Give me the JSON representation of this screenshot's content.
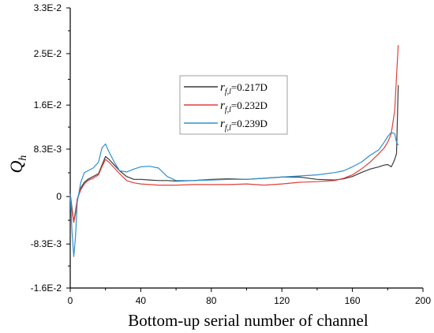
{
  "chart_data": {
    "type": "line",
    "title": "",
    "xlabel": "Bottom-up serial number of channel",
    "ylabel_main": "Q",
    "ylabel_sub": "h",
    "xlim": [
      0,
      200
    ],
    "ylim": [
      -0.016,
      0.033
    ],
    "x_ticks": [
      {
        "value": 0,
        "label": "0"
      },
      {
        "value": 40,
        "label": "40"
      },
      {
        "value": 80,
        "label": "80"
      },
      {
        "value": 120,
        "label": "120"
      },
      {
        "value": 160,
        "label": "160"
      },
      {
        "value": 200,
        "label": "200"
      }
    ],
    "y_ticks": [
      {
        "value": -0.016,
        "label": "-1.6E-2"
      },
      {
        "value": -0.0083,
        "label": "-8.3E-3"
      },
      {
        "value": 0,
        "label": "0"
      },
      {
        "value": 0.0083,
        "label": "8.3E-3"
      },
      {
        "value": 0.016,
        "label": "1.6E-2"
      },
      {
        "value": 0.025,
        "label": "2.5E-2"
      },
      {
        "value": 0.033,
        "label": "3.3E-2"
      }
    ],
    "grid": false,
    "legend_position": "center",
    "series": [
      {
        "name": "r_{f,l}=0.217D",
        "label_main": "r",
        "label_sub": "f,l",
        "label_rest": "=0.217D",
        "color": "#3a3a3a",
        "x": [
          0,
          1,
          2,
          3,
          4,
          6,
          8,
          10,
          13,
          16,
          18,
          20,
          22,
          25,
          28,
          32,
          36,
          40,
          45,
          50,
          55,
          60,
          70,
          80,
          90,
          100,
          110,
          120,
          130,
          140,
          150,
          155,
          160,
          165,
          170,
          175,
          178,
          180,
          182,
          183,
          184,
          185,
          186
        ],
        "y": [
          0.0005,
          -0.002,
          -0.0045,
          -0.0025,
          -0.0005,
          0.0015,
          0.0025,
          0.003,
          0.0035,
          0.004,
          0.0055,
          0.007,
          0.0065,
          0.0055,
          0.0045,
          0.0035,
          0.003,
          0.003,
          0.0029,
          0.0028,
          0.0028,
          0.0027,
          0.0028,
          0.003,
          0.0031,
          0.003,
          0.0032,
          0.0034,
          0.0034,
          0.003,
          0.0029,
          0.0031,
          0.0035,
          0.0042,
          0.0048,
          0.0052,
          0.0055,
          0.0056,
          0.0052,
          0.0058,
          0.0065,
          0.0075,
          0.0195
        ]
      },
      {
        "name": "r_{f,l}=0.232D",
        "label_main": "r",
        "label_sub": "f,l",
        "label_rest": "=0.232D",
        "color": "#e0403a",
        "x": [
          0,
          1,
          2,
          3,
          4,
          6,
          8,
          10,
          13,
          16,
          18,
          20,
          22,
          25,
          28,
          32,
          36,
          40,
          45,
          50,
          55,
          60,
          70,
          80,
          90,
          100,
          110,
          120,
          130,
          140,
          150,
          155,
          160,
          165,
          170,
          175,
          178,
          180,
          182,
          184,
          185,
          186
        ],
        "y": [
          0.0005,
          -0.0025,
          -0.0045,
          -0.003,
          -0.0005,
          0.0012,
          0.0022,
          0.0028,
          0.0032,
          0.0038,
          0.0052,
          0.0065,
          0.006,
          0.005,
          0.004,
          0.0028,
          0.0024,
          0.0022,
          0.0021,
          0.002,
          0.002,
          0.002,
          0.0021,
          0.0021,
          0.0021,
          0.0022,
          0.002,
          0.0022,
          0.0025,
          0.0026,
          0.0028,
          0.0032,
          0.0038,
          0.0048,
          0.006,
          0.0075,
          0.0085,
          0.0095,
          0.011,
          0.015,
          0.021,
          0.0265
        ]
      },
      {
        "name": "r_{f,l}=0.239D",
        "label_main": "r",
        "label_sub": "f,l",
        "label_rest": "=0.239D",
        "color": "#2f8fd0",
        "x": [
          0,
          1,
          2,
          3,
          4,
          6,
          8,
          10,
          13,
          16,
          18,
          20,
          22,
          25,
          28,
          32,
          36,
          40,
          45,
          50,
          55,
          60,
          70,
          80,
          90,
          100,
          110,
          120,
          130,
          140,
          150,
          155,
          160,
          165,
          170,
          175,
          178,
          180,
          182,
          184,
          185,
          186
        ],
        "y": [
          0.0005,
          -0.006,
          -0.0105,
          -0.007,
          -0.001,
          0.0025,
          0.0042,
          0.0045,
          0.005,
          0.006,
          0.0085,
          0.0092,
          0.0078,
          0.006,
          0.0045,
          0.0043,
          0.0048,
          0.0052,
          0.0053,
          0.005,
          0.0035,
          0.0028,
          0.0028,
          0.0029,
          0.003,
          0.003,
          0.0032,
          0.0034,
          0.0036,
          0.0038,
          0.0042,
          0.0045,
          0.0052,
          0.006,
          0.0072,
          0.0082,
          0.0095,
          0.0105,
          0.0112,
          0.011,
          0.0095,
          0.009
        ]
      }
    ]
  }
}
